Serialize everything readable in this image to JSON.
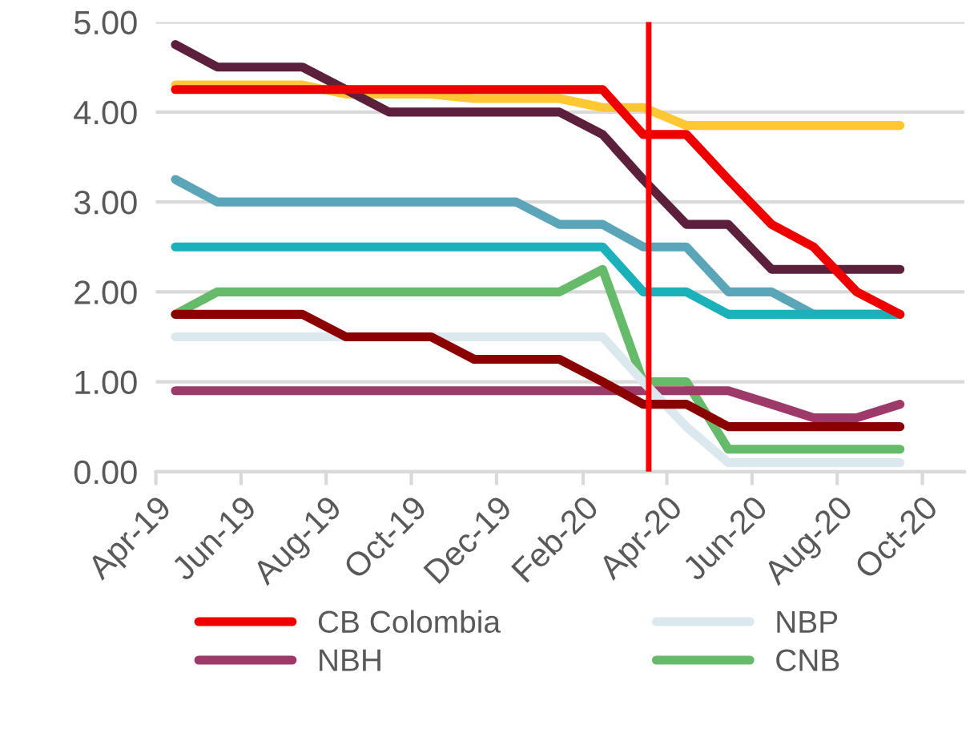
{
  "chart_data": {
    "type": "line",
    "x": [
      "2019-04-15",
      "2019-05-15",
      "2019-06-15",
      "2019-07-15",
      "2019-08-15",
      "2019-09-15",
      "2019-10-15",
      "2019-11-15",
      "2019-12-15",
      "2020-01-15",
      "2020-02-15",
      "2020-03-15",
      "2020-04-15",
      "2020-05-15",
      "2020-06-15",
      "2020-07-15",
      "2020-08-15",
      "2020-09-15"
    ],
    "series": [
      {
        "name": "CB Colombia",
        "color": "#ee0000",
        "values": [
          4.25,
          4.25,
          4.25,
          4.25,
          4.25,
          4.25,
          4.25,
          4.25,
          4.25,
          4.25,
          4.25,
          3.75,
          3.75,
          3.25,
          2.75,
          2.5,
          2.0,
          1.75
        ]
      },
      {
        "color": "#8b0000",
        "values": [
          1.75,
          1.75,
          1.75,
          1.75,
          1.5,
          1.5,
          1.5,
          1.25,
          1.25,
          1.25,
          1.0,
          0.75,
          0.75,
          0.5,
          0.5,
          0.5,
          0.5,
          0.5
        ]
      },
      {
        "name": "NBP",
        "color": "#dbe9ef",
        "values": [
          1.5,
          1.5,
          1.5,
          1.5,
          1.5,
          1.5,
          1.5,
          1.5,
          1.5,
          1.5,
          1.5,
          1.0,
          0.5,
          0.1,
          0.1,
          0.1,
          0.1,
          0.1
        ]
      },
      {
        "name": "NBH",
        "color": "#9e3a6a",
        "values": [
          0.9,
          0.9,
          0.9,
          0.9,
          0.9,
          0.9,
          0.9,
          0.9,
          0.9,
          0.9,
          0.9,
          0.9,
          0.9,
          0.9,
          0.75,
          0.6,
          0.6,
          0.75
        ]
      },
      {
        "name": "CNB",
        "color": "#66bb6a",
        "values": [
          1.75,
          2.0,
          2.0,
          2.0,
          2.0,
          2.0,
          2.0,
          2.0,
          2.0,
          2.0,
          2.25,
          1.0,
          1.0,
          0.25,
          0.25,
          0.25,
          0.25,
          0.25
        ]
      },
      {
        "color": "#5c1f3c",
        "values": [
          4.75,
          4.5,
          4.5,
          4.5,
          4.25,
          4.0,
          4.0,
          4.0,
          4.0,
          4.0,
          3.75,
          3.25,
          2.75,
          2.75,
          2.25,
          2.25,
          2.25,
          2.25
        ]
      },
      {
        "color": "#ffc832",
        "values": [
          4.3,
          4.3,
          4.3,
          4.3,
          4.2,
          4.2,
          4.2,
          4.15,
          4.15,
          4.15,
          4.05,
          4.05,
          3.85,
          3.85,
          3.85,
          3.85,
          3.85,
          3.85
        ]
      },
      {
        "color": "#1ab1bb",
        "values": [
          2.5,
          2.5,
          2.5,
          2.5,
          2.5,
          2.5,
          2.5,
          2.5,
          2.5,
          2.5,
          2.5,
          2.0,
          2.0,
          1.75,
          1.75,
          1.75,
          1.75,
          1.75
        ]
      },
      {
        "color": "#5ba5b8",
        "values": [
          3.25,
          3.0,
          3.0,
          3.0,
          3.0,
          3.0,
          3.0,
          3.0,
          3.0,
          2.75,
          2.75,
          2.5,
          2.5,
          2.0,
          2.0,
          1.75,
          1.75,
          1.75
        ]
      }
    ],
    "ylim": [
      0,
      5
    ],
    "yticks": [
      {
        "value": 0,
        "label": "0.00"
      },
      {
        "value": 1,
        "label": "1.00"
      },
      {
        "value": 2,
        "label": "2.00"
      },
      {
        "value": 3,
        "label": "3.00"
      },
      {
        "value": 4,
        "label": "4.00"
      },
      {
        "value": 5,
        "label": "5.00"
      }
    ],
    "xlim": [
      "2019-04-01",
      "2020-10-31"
    ],
    "xticks": [
      {
        "value": "2019-04-01",
        "label": "Apr-19"
      },
      {
        "value": "2019-06-01",
        "label": "Jun-19"
      },
      {
        "value": "2019-08-01",
        "label": "Aug-19"
      },
      {
        "value": "2019-10-01",
        "label": "Oct-19"
      },
      {
        "value": "2019-12-01",
        "label": "Dec-19"
      },
      {
        "value": "2020-02-01",
        "label": "Feb-20"
      },
      {
        "value": "2020-04-01",
        "label": "Apr-20"
      },
      {
        "value": "2020-06-01",
        "label": "Jun-20"
      },
      {
        "value": "2020-08-01",
        "label": "Aug-20"
      },
      {
        "value": "2020-10-01",
        "label": "Oct-20"
      }
    ],
    "ref_lines": [
      {
        "axis": "x",
        "value": "2020-03-19",
        "color": "#ff0000"
      }
    ],
    "grid": "y",
    "legend": "bottom",
    "marker": "none",
    "line_style": "solid"
  }
}
